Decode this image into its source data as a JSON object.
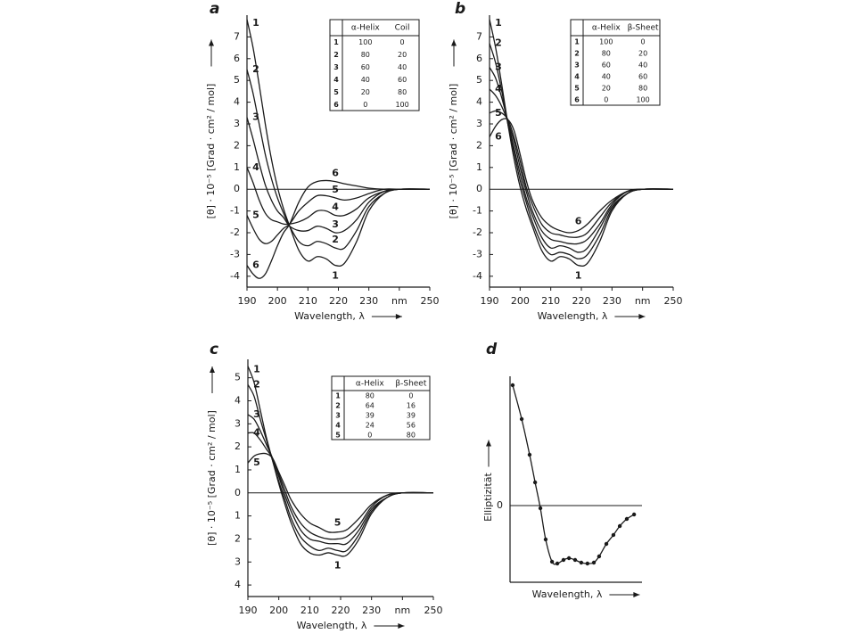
{
  "chart_data": [
    {
      "type": "line",
      "label": "a",
      "color": "#1a1a1a",
      "xlabel": "Wavelength, λ",
      "ylabel": "[θ] · 10⁻⁵ [Grad · cm² / mol]",
      "x": [
        190,
        192,
        194,
        196,
        198,
        200,
        202,
        204,
        207,
        210,
        213,
        216,
        219,
        222,
        226,
        230,
        235,
        240,
        250
      ],
      "xlim": [
        190,
        250
      ],
      "xticks": [
        190,
        200,
        210,
        220,
        230,
        {
          "value": 240,
          "label": "nm"
        },
        250
      ],
      "ylim": [
        -4.5,
        8.0
      ],
      "yticks": [
        -4,
        -3,
        -2,
        -1,
        0,
        1,
        2,
        3,
        4,
        5,
        6,
        7
      ],
      "series": [
        {
          "name": "1",
          "values": [
            7.8,
            6.5,
            4.8,
            3.0,
            1.4,
            0.1,
            -0.9,
            -1.7,
            -2.8,
            -3.3,
            -3.1,
            -3.2,
            -3.5,
            -3.4,
            -2.4,
            -1.0,
            -0.2,
            0,
            0
          ]
        },
        {
          "name": "2",
          "values": [
            5.5,
            4.4,
            3.0,
            1.6,
            0.5,
            -0.4,
            -1.1,
            -1.7,
            -2.4,
            -2.6,
            -2.4,
            -2.5,
            -2.7,
            -2.7,
            -1.9,
            -0.8,
            -0.2,
            0,
            0
          ]
        },
        {
          "name": "3",
          "values": [
            3.3,
            2.3,
            1.2,
            0.2,
            -0.5,
            -1.0,
            -1.3,
            -1.7,
            -1.9,
            -1.9,
            -1.7,
            -1.8,
            -2.0,
            -1.9,
            -1.4,
            -0.6,
            -0.1,
            0,
            0
          ]
        },
        {
          "name": "4",
          "values": [
            1.0,
            0.3,
            -0.5,
            -1.1,
            -1.4,
            -1.5,
            -1.6,
            -1.6,
            -1.5,
            -1.3,
            -1.0,
            -1.0,
            -1.2,
            -1.2,
            -0.9,
            -0.4,
            -0.1,
            0,
            0
          ]
        },
        {
          "name": "5",
          "values": [
            -1.2,
            -1.8,
            -2.3,
            -2.5,
            -2.4,
            -2.1,
            -1.8,
            -1.6,
            -1.0,
            -0.6,
            -0.3,
            -0.3,
            -0.4,
            -0.5,
            -0.4,
            -0.2,
            0,
            0,
            0
          ]
        },
        {
          "name": "6",
          "values": [
            -3.5,
            -3.9,
            -4.1,
            -3.9,
            -3.3,
            -2.6,
            -2.0,
            -1.6,
            -0.6,
            0.1,
            0.35,
            0.4,
            0.35,
            0.25,
            0.15,
            0.05,
            0,
            0,
            0
          ]
        }
      ],
      "table": {
        "header": [
          "α-Helix",
          "Coil"
        ],
        "rows": [
          [
            1,
            100,
            0
          ],
          [
            2,
            80,
            20
          ],
          [
            3,
            60,
            40
          ],
          [
            4,
            40,
            60
          ],
          [
            5,
            20,
            80
          ],
          [
            6,
            0,
            100
          ]
        ]
      }
    },
    {
      "type": "line",
      "label": "b",
      "color": "#1a1a1a",
      "xlabel": "Wavelength, λ",
      "ylabel": "[θ] · 10⁻⁵ [Grad · cm² / mol]",
      "x": [
        190,
        192,
        194,
        196,
        198,
        200,
        202,
        204,
        207,
        210,
        213,
        216,
        219,
        222,
        226,
        230,
        235,
        240,
        250
      ],
      "xlim": [
        190,
        250
      ],
      "xticks": [
        190,
        200,
        210,
        220,
        230,
        {
          "value": 240,
          "label": "nm"
        },
        250
      ],
      "ylim": [
        -4.5,
        8.0
      ],
      "yticks": [
        -4,
        -3,
        -2,
        -1,
        0,
        1,
        2,
        3,
        4,
        5,
        6,
        7
      ],
      "series": [
        {
          "name": "1",
          "values": [
            7.8,
            6.5,
            4.8,
            3.0,
            1.4,
            0.1,
            -0.9,
            -1.7,
            -2.8,
            -3.3,
            -3.1,
            -3.2,
            -3.5,
            -3.4,
            -2.4,
            -1.0,
            -0.2,
            0,
            0
          ]
        },
        {
          "name": "2",
          "values": [
            6.7,
            5.8,
            4.5,
            3.0,
            1.7,
            0.4,
            -0.6,
            -1.5,
            -2.5,
            -3.0,
            -2.9,
            -3.0,
            -3.2,
            -3.0,
            -2.1,
            -0.9,
            -0.2,
            0,
            0
          ]
        },
        {
          "name": "3",
          "values": [
            5.6,
            5.1,
            4.2,
            3.1,
            1.9,
            0.7,
            -0.4,
            -1.2,
            -2.2,
            -2.7,
            -2.6,
            -2.7,
            -2.9,
            -2.7,
            -1.8,
            -0.8,
            -0.2,
            0,
            0
          ]
        },
        {
          "name": "4",
          "values": [
            4.6,
            4.3,
            3.8,
            3.1,
            2.2,
            1.0,
            -0.1,
            -1.0,
            -1.9,
            -2.3,
            -2.4,
            -2.5,
            -2.5,
            -2.3,
            -1.6,
            -0.7,
            -0.1,
            0,
            0
          ]
        },
        {
          "name": "5",
          "values": [
            3.5,
            3.6,
            3.5,
            3.2,
            2.4,
            1.3,
            0.1,
            -0.7,
            -1.6,
            -2.0,
            -2.1,
            -2.2,
            -2.2,
            -2.0,
            -1.3,
            -0.6,
            -0.1,
            0,
            0
          ]
        },
        {
          "name": "6",
          "values": [
            2.4,
            2.9,
            3.2,
            3.2,
            2.7,
            1.6,
            0.4,
            -0.5,
            -1.3,
            -1.7,
            -1.9,
            -2.0,
            -1.9,
            -1.6,
            -1.0,
            -0.5,
            -0.1,
            0,
            0
          ]
        }
      ],
      "table": {
        "header": [
          "α-Helix",
          "β-Sheet"
        ],
        "rows": [
          [
            1,
            100,
            0
          ],
          [
            2,
            80,
            20
          ],
          [
            3,
            60,
            40
          ],
          [
            4,
            40,
            60
          ],
          [
            5,
            20,
            80
          ],
          [
            6,
            0,
            100
          ]
        ]
      }
    },
    {
      "type": "line",
      "label": "c",
      "color": "#1a1a1a",
      "xlabel": "Wavelength, λ",
      "ylabel": "[θ] · 10⁻⁵ [Grad · cm² / mol]",
      "x": [
        190,
        192,
        194,
        196,
        198,
        200,
        202,
        204,
        207,
        210,
        213,
        216,
        219,
        222,
        226,
        230,
        235,
        240,
        250
      ],
      "xlim": [
        190,
        250
      ],
      "xticks": [
        190,
        200,
        210,
        220,
        230,
        {
          "value": 240,
          "label": "nm"
        },
        250
      ],
      "ylim": [
        -4.5,
        5.8
      ],
      "yticks": [
        {
          "value": -4,
          "label": "4"
        },
        {
          "value": -3,
          "label": "3"
        },
        {
          "value": -2,
          "label": "2"
        },
        {
          "value": -1,
          "label": "1"
        },
        0,
        1,
        2,
        3,
        4,
        5
      ],
      "series": [
        {
          "name": "1",
          "values": [
            5.5,
            4.8,
            3.6,
            2.4,
            1.4,
            0.4,
            -0.5,
            -1.3,
            -2.2,
            -2.6,
            -2.7,
            -2.6,
            -2.7,
            -2.7,
            -2.0,
            -0.9,
            -0.2,
            0,
            0
          ]
        },
        {
          "name": "2",
          "values": [
            4.7,
            4.2,
            3.2,
            2.3,
            1.4,
            0.5,
            -0.3,
            -1.1,
            -1.9,
            -2.3,
            -2.5,
            -2.4,
            -2.5,
            -2.5,
            -1.8,
            -0.8,
            -0.2,
            0,
            0
          ]
        },
        {
          "name": "3",
          "values": [
            3.4,
            3.2,
            2.7,
            2.1,
            1.5,
            0.7,
            -0.1,
            -0.8,
            -1.6,
            -2.0,
            -2.1,
            -2.2,
            -2.2,
            -2.2,
            -1.6,
            -0.7,
            -0.2,
            0,
            0
          ]
        },
        {
          "name": "4",
          "values": [
            2.6,
            2.6,
            2.3,
            1.9,
            1.5,
            0.8,
            0.1,
            -0.6,
            -1.3,
            -1.7,
            -1.9,
            -2.0,
            -2.0,
            -1.9,
            -1.4,
            -0.6,
            -0.1,
            0,
            0
          ]
        },
        {
          "name": "5",
          "values": [
            1.3,
            1.6,
            1.7,
            1.7,
            1.5,
            0.9,
            0.3,
            -0.3,
            -0.9,
            -1.3,
            -1.5,
            -1.7,
            -1.7,
            -1.6,
            -1.1,
            -0.5,
            -0.1,
            0,
            0
          ]
        }
      ],
      "table": {
        "header": [
          "α-Helix",
          "β-Sheet"
        ],
        "rows": [
          [
            1,
            80,
            0
          ],
          [
            2,
            64,
            16
          ],
          [
            3,
            39,
            39
          ],
          [
            4,
            24,
            56
          ],
          [
            5,
            0,
            80
          ]
        ]
      }
    },
    {
      "type": "line",
      "label": "d",
      "color": "#1a1a1a",
      "markers": true,
      "xlabel": "Wavelength, λ",
      "ylabel": "Elliptizität",
      "x": [
        191.2,
        195.3,
        198.9,
        201.4,
        203.8,
        206.2,
        209.1,
        211.5,
        214.3,
        216.8,
        219.6,
        222.4,
        225.2,
        228.1,
        230.5,
        233.8,
        237.0,
        239.9,
        243.1,
        246.4
      ],
      "xlim": [
        190,
        250
      ],
      "ylim": [
        -0.86,
        1.45
      ],
      "yticks": [
        0
      ],
      "series": [
        {
          "values": [
            1.35,
            0.97,
            0.57,
            0.26,
            -0.03,
            -0.38,
            -0.63,
            -0.65,
            -0.61,
            -0.59,
            -0.61,
            -0.64,
            -0.65,
            -0.64,
            -0.57,
            -0.43,
            -0.33,
            -0.23,
            -0.15,
            -0.1
          ]
        }
      ]
    }
  ]
}
